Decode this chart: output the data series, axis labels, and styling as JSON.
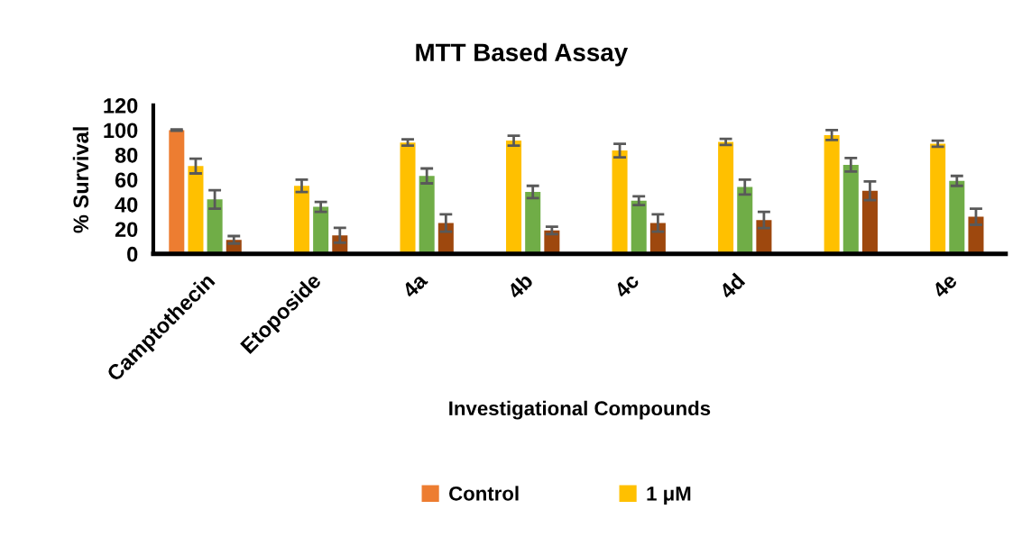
{
  "chart_data": {
    "type": "bar",
    "title": "MTT Based Assay",
    "xlabel": "Investigational Compounds",
    "ylabel": "% Survival",
    "categories": [
      "Camptothecin",
      "Etoposide",
      "4a",
      "4b",
      "4c",
      "4d",
      null,
      "4e"
    ],
    "series": [
      {
        "name": "Control",
        "color": "#ed7d31",
        "values": [
          100,
          null,
          null,
          null,
          null,
          null,
          null,
          null
        ],
        "errors": [
          0.5,
          null,
          null,
          null,
          null,
          null,
          null,
          null
        ]
      },
      {
        "name": "1 μM",
        "color": "#ffc000",
        "values": [
          71,
          55,
          90,
          91.5,
          83.5,
          90.5,
          96,
          89
        ],
        "errors": [
          6,
          5,
          2.5,
          4,
          5.5,
          2.5,
          4,
          2.5
        ]
      },
      {
        "color": "#70ad47",
        "values": [
          44,
          38,
          63,
          50,
          43,
          54,
          72,
          59
        ],
        "errors": [
          7.5,
          4,
          6,
          5,
          3.5,
          6,
          5.5,
          4
        ]
      },
      {
        "color": "#9e480e",
        "values": [
          11.4,
          15,
          25,
          19,
          25,
          27.4,
          51,
          30
        ],
        "errors": [
          3,
          6,
          7,
          3,
          7,
          6.5,
          7.5,
          6.5
        ]
      }
    ],
    "ylim": [
      0,
      120
    ],
    "yticks": [
      0,
      20,
      40,
      60,
      80,
      100,
      120
    ],
    "grid": false,
    "legend": "bottom"
  }
}
